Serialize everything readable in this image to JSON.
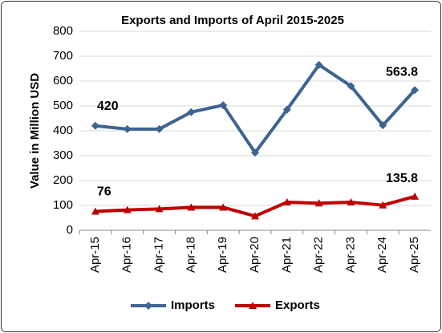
{
  "chart_data": {
    "type": "line",
    "title": "Exports and Imports of April 2015-2025",
    "y_label": "Value in Million USD",
    "categories": [
      "Apr-15",
      "Apr-16",
      "Apr-17",
      "Apr-18",
      "Apr-19",
      "Apr-20",
      "Apr-21",
      "Apr-22",
      "Apr-23",
      "Apr-24",
      "Apr-25"
    ],
    "series": [
      {
        "name": "Imports",
        "color": "#3e6491",
        "marker": "diamond",
        "values": [
          420,
          407,
          407,
          475,
          503,
          312,
          485,
          665,
          580,
          422,
          563.8
        ]
      },
      {
        "name": "Exports",
        "color": "#c00000",
        "marker": "triangle",
        "values": [
          76,
          82,
          86,
          92,
          92,
          57,
          113,
          109,
          113,
          101,
          135.8
        ]
      }
    ],
    "data_labels": "ends",
    "ylim": [
      0,
      800
    ],
    "yticks": [
      0,
      100,
      200,
      300,
      400,
      500,
      600,
      700,
      800
    ],
    "grid": true,
    "legend": "bottom"
  }
}
